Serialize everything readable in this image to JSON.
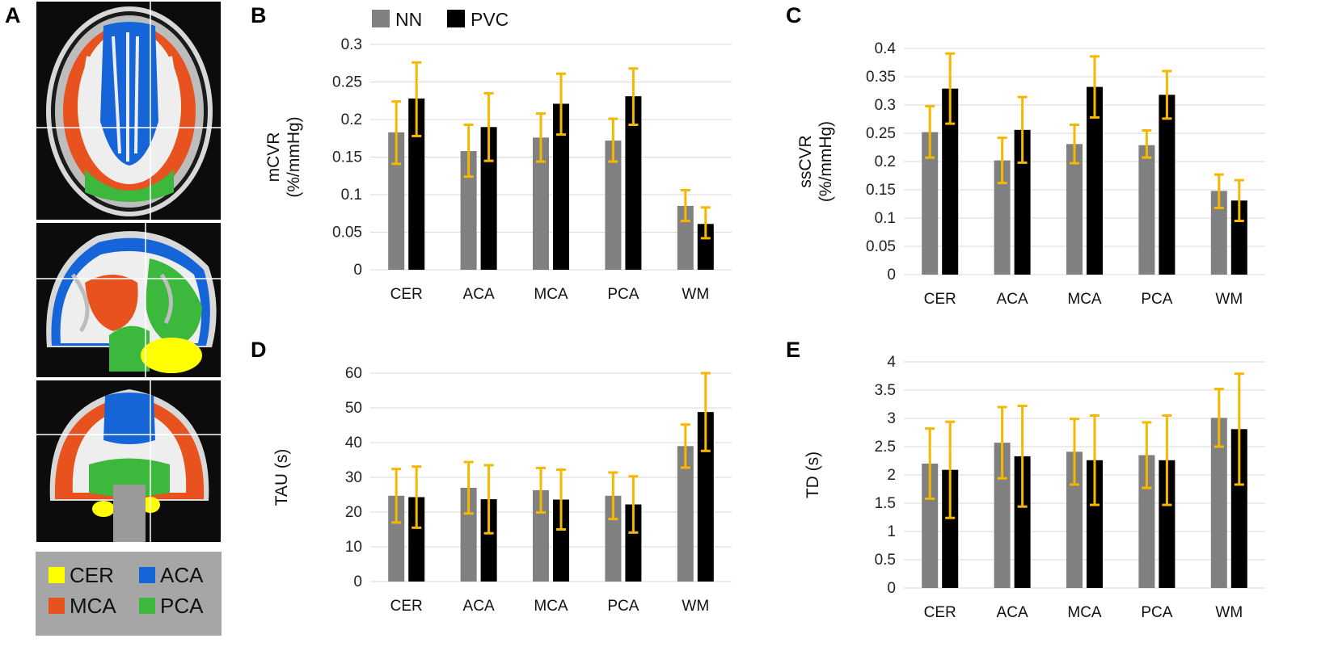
{
  "colors": {
    "nn": "#808080",
    "pvc": "#000000",
    "error": "#F5B800",
    "grid": "#D9D9D9",
    "roi_cer": "#FFFF00",
    "roi_aca": "#1565D8",
    "roi_mca": "#E8521F",
    "roi_pca": "#3CB83C",
    "roi_box": "#A6A6A6"
  },
  "panel_a": {
    "label": "A",
    "slices": [
      "axial",
      "sagittal",
      "coronal"
    ],
    "roi_legend": [
      {
        "name": "CER",
        "color": "#FFFF00"
      },
      {
        "name": "ACA",
        "color": "#1565D8"
      },
      {
        "name": "MCA",
        "color": "#E8521F"
      },
      {
        "name": "PCA",
        "color": "#3CB83C"
      }
    ]
  },
  "legend": {
    "nn": "NN",
    "pvc": "PVC"
  },
  "chart_data": [
    {
      "panel": "B",
      "type": "bar",
      "categories": [
        "CER",
        "ACA",
        "MCA",
        "PCA",
        "WM"
      ],
      "ylabel_line1": "mCVR",
      "ylabel_line2": "(%/mmHg)",
      "ylim": [
        0,
        0.3
      ],
      "yticks": [
        "0",
        "0.05",
        "0.1",
        "0.15",
        "0.2",
        "0.25",
        "0.3"
      ],
      "series": [
        {
          "name": "NN",
          "values": [
            0.183,
            0.158,
            0.176,
            0.172,
            0.085
          ],
          "err_low": [
            0.042,
            0.034,
            0.032,
            0.028,
            0.02
          ],
          "err_high": [
            0.041,
            0.035,
            0.032,
            0.029,
            0.021
          ]
        },
        {
          "name": "PVC",
          "values": [
            0.228,
            0.19,
            0.221,
            0.231,
            0.061
          ],
          "err_low": [
            0.05,
            0.045,
            0.041,
            0.038,
            0.019
          ],
          "err_high": [
            0.048,
            0.045,
            0.04,
            0.037,
            0.022
          ]
        }
      ]
    },
    {
      "panel": "C",
      "type": "bar",
      "categories": [
        "CER",
        "ACA",
        "MCA",
        "PCA",
        "WM"
      ],
      "ylabel_line1": "ssCVR",
      "ylabel_line2": "(%/mmHg)",
      "ylim": [
        0,
        0.4
      ],
      "yticks": [
        "0",
        "0.05",
        "0.1",
        "0.15",
        "0.2",
        "0.25",
        "0.3",
        "0.35",
        "0.4"
      ],
      "series": [
        {
          "name": "NN",
          "values": [
            0.252,
            0.202,
            0.231,
            0.229,
            0.148
          ],
          "err_low": [
            0.045,
            0.04,
            0.034,
            0.022,
            0.03
          ],
          "err_high": [
            0.046,
            0.04,
            0.034,
            0.026,
            0.029
          ]
        },
        {
          "name": "PVC",
          "values": [
            0.329,
            0.256,
            0.332,
            0.318,
            0.131
          ],
          "err_low": [
            0.062,
            0.058,
            0.054,
            0.042,
            0.036
          ],
          "err_high": [
            0.062,
            0.058,
            0.054,
            0.042,
            0.036
          ]
        }
      ]
    },
    {
      "panel": "D",
      "type": "bar",
      "categories": [
        "CER",
        "ACA",
        "MCA",
        "PCA",
        "WM"
      ],
      "ylabel_line1": "TAU (s)",
      "ylabel_line2": "",
      "ylim": [
        0,
        60
      ],
      "yticks": [
        "0",
        "10",
        "20",
        "30",
        "40",
        "50",
        "60"
      ],
      "series": [
        {
          "name": "NN",
          "values": [
            24.7,
            27.0,
            26.3,
            24.7,
            39.0
          ],
          "err_low": [
            7.7,
            7.4,
            6.4,
            6.7,
            6.2
          ],
          "err_high": [
            7.7,
            7.4,
            6.4,
            6.7,
            6.2
          ]
        },
        {
          "name": "PVC",
          "values": [
            24.3,
            23.7,
            23.6,
            22.2,
            48.8
          ],
          "err_low": [
            8.8,
            9.8,
            8.6,
            8.1,
            11.2
          ],
          "err_high": [
            8.8,
            9.8,
            8.6,
            8.1,
            11.2
          ]
        }
      ]
    },
    {
      "panel": "E",
      "type": "bar",
      "categories": [
        "CER",
        "ACA",
        "MCA",
        "PCA",
        "WM"
      ],
      "ylabel_line1": "TD (s)",
      "ylabel_line2": "",
      "ylim": [
        0,
        4
      ],
      "yticks": [
        "0",
        "0.5",
        "1",
        "1.5",
        "2",
        "2.5",
        "3",
        "3.5",
        "4"
      ],
      "series": [
        {
          "name": "NN",
          "values": [
            2.2,
            2.57,
            2.41,
            2.35,
            3.01
          ],
          "err_low": [
            0.62,
            0.63,
            0.58,
            0.58,
            0.51
          ],
          "err_high": [
            0.62,
            0.63,
            0.58,
            0.58,
            0.51
          ]
        },
        {
          "name": "PVC",
          "values": [
            2.09,
            2.33,
            2.26,
            2.26,
            2.81
          ],
          "err_low": [
            0.85,
            0.89,
            0.79,
            0.79,
            0.98
          ],
          "err_high": [
            0.85,
            0.89,
            0.79,
            0.79,
            0.98
          ]
        }
      ]
    }
  ]
}
